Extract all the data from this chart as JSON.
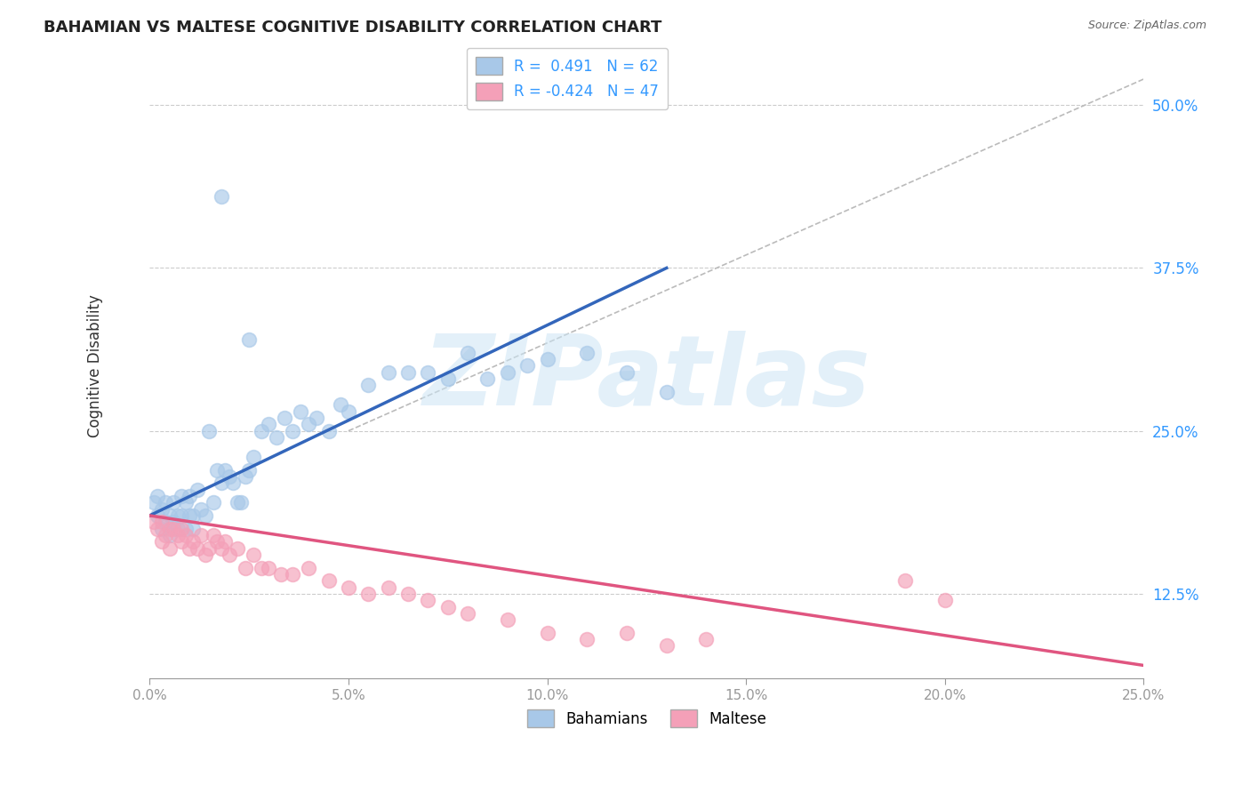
{
  "title": "BAHAMIAN VS MALTESE COGNITIVE DISABILITY CORRELATION CHART",
  "source": "Source: ZipAtlas.com",
  "ylabel": "Cognitive Disability",
  "xlim": [
    0.0,
    0.25
  ],
  "ylim": [
    0.06,
    0.54
  ],
  "yticks": [
    0.125,
    0.25,
    0.375,
    0.5
  ],
  "ytick_labels": [
    "12.5%",
    "25.0%",
    "37.5%",
    "50.0%"
  ],
  "xticks": [
    0.0,
    0.05,
    0.1,
    0.15,
    0.2,
    0.25
  ],
  "xtick_labels": [
    "0.0%",
    "5.0%",
    "10.0%",
    "15.0%",
    "20.0%",
    "25.0%"
  ],
  "blue_color": "#a8c8e8",
  "pink_color": "#f4a0b8",
  "blue_line_color": "#3366bb",
  "pink_line_color": "#e05580",
  "dashed_line_color": "#bbbbbb",
  "r_blue": 0.491,
  "n_blue": 62,
  "r_pink": -0.424,
  "n_pink": 47,
  "legend_label_blue": "Bahamians",
  "legend_label_pink": "Maltese",
  "watermark": "ZIPatlas",
  "background_color": "#ffffff",
  "blue_scatter_x": [
    0.001,
    0.002,
    0.002,
    0.003,
    0.003,
    0.004,
    0.004,
    0.005,
    0.005,
    0.006,
    0.006,
    0.007,
    0.007,
    0.008,
    0.008,
    0.009,
    0.009,
    0.01,
    0.01,
    0.011,
    0.011,
    0.012,
    0.013,
    0.014,
    0.015,
    0.016,
    0.017,
    0.018,
    0.019,
    0.02,
    0.021,
    0.022,
    0.023,
    0.024,
    0.025,
    0.026,
    0.028,
    0.03,
    0.032,
    0.034,
    0.036,
    0.038,
    0.04,
    0.042,
    0.045,
    0.048,
    0.05,
    0.055,
    0.06,
    0.065,
    0.07,
    0.075,
    0.08,
    0.085,
    0.09,
    0.095,
    0.1,
    0.11,
    0.12,
    0.13,
    0.018,
    0.025
  ],
  "blue_scatter_y": [
    0.195,
    0.2,
    0.185,
    0.19,
    0.175,
    0.195,
    0.18,
    0.185,
    0.17,
    0.195,
    0.18,
    0.185,
    0.175,
    0.2,
    0.185,
    0.195,
    0.175,
    0.2,
    0.185,
    0.185,
    0.175,
    0.205,
    0.19,
    0.185,
    0.25,
    0.195,
    0.22,
    0.21,
    0.22,
    0.215,
    0.21,
    0.195,
    0.195,
    0.215,
    0.22,
    0.23,
    0.25,
    0.255,
    0.245,
    0.26,
    0.25,
    0.265,
    0.255,
    0.26,
    0.25,
    0.27,
    0.265,
    0.285,
    0.295,
    0.295,
    0.295,
    0.29,
    0.31,
    0.29,
    0.295,
    0.3,
    0.305,
    0.31,
    0.295,
    0.28,
    0.43,
    0.32
  ],
  "pink_scatter_x": [
    0.001,
    0.002,
    0.003,
    0.003,
    0.004,
    0.005,
    0.005,
    0.006,
    0.007,
    0.008,
    0.008,
    0.009,
    0.01,
    0.011,
    0.012,
    0.013,
    0.014,
    0.015,
    0.016,
    0.017,
    0.018,
    0.019,
    0.02,
    0.022,
    0.024,
    0.026,
    0.028,
    0.03,
    0.033,
    0.036,
    0.04,
    0.045,
    0.05,
    0.055,
    0.06,
    0.065,
    0.07,
    0.075,
    0.08,
    0.09,
    0.1,
    0.11,
    0.12,
    0.13,
    0.14,
    0.19,
    0.2
  ],
  "pink_scatter_y": [
    0.18,
    0.175,
    0.18,
    0.165,
    0.17,
    0.175,
    0.16,
    0.175,
    0.17,
    0.175,
    0.165,
    0.17,
    0.16,
    0.165,
    0.16,
    0.17,
    0.155,
    0.16,
    0.17,
    0.165,
    0.16,
    0.165,
    0.155,
    0.16,
    0.145,
    0.155,
    0.145,
    0.145,
    0.14,
    0.14,
    0.145,
    0.135,
    0.13,
    0.125,
    0.13,
    0.125,
    0.12,
    0.115,
    0.11,
    0.105,
    0.095,
    0.09,
    0.095,
    0.085,
    0.09,
    0.135,
    0.12
  ],
  "blue_line_x": [
    0.0,
    0.13
  ],
  "blue_line_y": [
    0.185,
    0.375
  ],
  "pink_line_x": [
    0.0,
    0.25
  ],
  "pink_line_y": [
    0.185,
    0.07
  ],
  "diag_line_x": [
    0.05,
    0.25
  ],
  "diag_line_y": [
    0.25,
    0.52
  ]
}
